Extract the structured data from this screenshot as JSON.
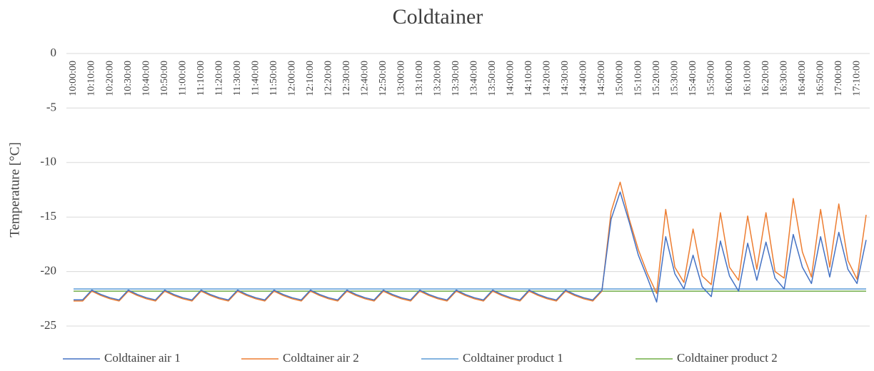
{
  "chart_data": {
    "type": "line",
    "title": "Coldtainer",
    "y_label": "Temperature [°C]",
    "categories": [
      "10:00:00",
      null,
      "10:10:00",
      null,
      "10:20:00",
      null,
      "10:30:00",
      null,
      "10:40:00",
      null,
      "10:50:00",
      null,
      "11:00:00",
      null,
      "11:10:00",
      null,
      "11:20:00",
      null,
      "11:30:00",
      null,
      "11:40:00",
      null,
      "11:50:00",
      null,
      "12:00:00",
      null,
      "12:10:00",
      null,
      "12:20:00",
      null,
      "12:30:00",
      null,
      "12:40:00",
      null,
      "12:50:00",
      null,
      "13:00:00",
      null,
      "13:10:00",
      null,
      "13:20:00",
      null,
      "13:30:00",
      null,
      "13:40:00",
      null,
      "13:50:00",
      null,
      "14:00:00",
      null,
      "14:10:00",
      null,
      "14:20:00",
      null,
      "14:30:00",
      null,
      "14:40:00",
      null,
      "14:50:00",
      null,
      "15:00:00",
      null,
      "15:10:00",
      null,
      "15:20:00",
      null,
      "15:30:00",
      null,
      "15:40:00",
      null,
      "15:50:00",
      null,
      "16:00:00",
      null,
      "16:10:00",
      null,
      "16:20:00",
      null,
      "16:30:00",
      null,
      "16:40:00",
      null,
      "16:50:00",
      null,
      "17:00:00",
      null,
      "17:10:00",
      null
    ],
    "series": [
      {
        "name": "Coldtainer air 1",
        "color": "#4472c4",
        "values": [
          -22.6,
          -22.6,
          -21.7,
          -22.1,
          -22.4,
          -22.6,
          -21.7,
          -22.1,
          -22.4,
          -22.6,
          -21.7,
          -22.1,
          -22.4,
          -22.6,
          -21.7,
          -22.1,
          -22.4,
          -22.6,
          -21.7,
          -22.1,
          -22.4,
          -22.6,
          -21.7,
          -22.1,
          -22.4,
          -22.6,
          -21.7,
          -22.1,
          -22.4,
          -22.6,
          -21.7,
          -22.1,
          -22.4,
          -22.6,
          -21.7,
          -22.1,
          -22.4,
          -22.6,
          -21.7,
          -22.1,
          -22.4,
          -22.6,
          -21.7,
          -22.1,
          -22.4,
          -22.6,
          -21.7,
          -22.1,
          -22.4,
          -22.6,
          -21.7,
          -22.1,
          -22.4,
          -22.6,
          -21.7,
          -22.1,
          -22.4,
          -22.6,
          -21.7,
          -15.2,
          -12.7,
          -15.5,
          -18.5,
          -20.6,
          -22.8,
          -16.8,
          -20.2,
          -21.6,
          -18.5,
          -21.4,
          -22.3,
          -17.2,
          -20.4,
          -21.8,
          -17.4,
          -20.8,
          -17.3,
          -20.6,
          -21.6,
          -16.6,
          -19.6,
          -21.1,
          -16.8,
          -20.5,
          -16.4,
          -19.8,
          -21.1,
          -17.1
        ]
      },
      {
        "name": "Coldtainer air 2",
        "color": "#ed7d31",
        "values": [
          -22.7,
          -22.7,
          -21.8,
          -22.2,
          -22.5,
          -22.7,
          -21.8,
          -22.2,
          -22.5,
          -22.7,
          -21.8,
          -22.2,
          -22.5,
          -22.7,
          -21.8,
          -22.2,
          -22.5,
          -22.7,
          -21.8,
          -22.2,
          -22.5,
          -22.7,
          -21.8,
          -22.2,
          -22.5,
          -22.7,
          -21.8,
          -22.2,
          -22.5,
          -22.7,
          -21.8,
          -22.2,
          -22.5,
          -22.7,
          -21.8,
          -22.2,
          -22.5,
          -22.7,
          -21.8,
          -22.2,
          -22.5,
          -22.7,
          -21.8,
          -22.2,
          -22.5,
          -22.7,
          -21.8,
          -22.2,
          -22.5,
          -22.7,
          -21.8,
          -22.2,
          -22.5,
          -22.7,
          -21.8,
          -22.2,
          -22.5,
          -22.7,
          -21.8,
          -14.5,
          -11.8,
          -15.2,
          -18.0,
          -20.2,
          -22.0,
          -14.3,
          -19.6,
          -21.0,
          -16.1,
          -20.4,
          -21.2,
          -14.6,
          -19.6,
          -20.8,
          -14.9,
          -19.8,
          -14.6,
          -20.0,
          -20.6,
          -13.3,
          -18.2,
          -20.5,
          -14.3,
          -19.6,
          -13.8,
          -19.0,
          -20.7,
          -14.8
        ]
      },
      {
        "name": "Coldtainer product 1",
        "color": "#5b9bd5",
        "values": [
          -21.6,
          -21.6,
          -21.6,
          -21.6,
          -21.6,
          -21.6,
          -21.6,
          -21.6,
          -21.6,
          -21.6,
          -21.6,
          -21.6,
          -21.6,
          -21.6,
          -21.6,
          -21.6,
          -21.6,
          -21.6,
          -21.6,
          -21.6,
          -21.6,
          -21.6,
          -21.6,
          -21.6,
          -21.6,
          -21.6,
          -21.6,
          -21.6,
          -21.6,
          -21.6,
          -21.6,
          -21.6,
          -21.6,
          -21.6,
          -21.6,
          -21.6,
          -21.6,
          -21.6,
          -21.6,
          -21.6,
          -21.6,
          -21.6,
          -21.6,
          -21.6,
          -21.6,
          -21.6,
          -21.6,
          -21.6,
          -21.6,
          -21.6,
          -21.6,
          -21.6,
          -21.6,
          -21.6,
          -21.6,
          -21.6,
          -21.6,
          -21.6,
          -21.6,
          -21.6,
          -21.6,
          -21.6,
          -21.6,
          -21.6,
          -21.6,
          -21.6,
          -21.6,
          -21.6,
          -21.6,
          -21.6,
          -21.6,
          -21.6,
          -21.6,
          -21.6,
          -21.6,
          -21.6,
          -21.6,
          -21.6,
          -21.6,
          -21.6,
          -21.6,
          -21.6,
          -21.6,
          -21.6,
          -21.6,
          -21.6,
          -21.6,
          -21.6
        ]
      },
      {
        "name": "Coldtainer product 2",
        "color": "#70ad47",
        "values": [
          -21.8,
          -21.8,
          -21.8,
          -21.8,
          -21.8,
          -21.8,
          -21.8,
          -21.8,
          -21.8,
          -21.8,
          -21.8,
          -21.8,
          -21.8,
          -21.8,
          -21.8,
          -21.8,
          -21.8,
          -21.8,
          -21.8,
          -21.8,
          -21.8,
          -21.8,
          -21.8,
          -21.8,
          -21.8,
          -21.8,
          -21.8,
          -21.8,
          -21.8,
          -21.8,
          -21.8,
          -21.8,
          -21.8,
          -21.8,
          -21.8,
          -21.8,
          -21.8,
          -21.8,
          -21.8,
          -21.8,
          -21.8,
          -21.8,
          -21.8,
          -21.8,
          -21.8,
          -21.8,
          -21.8,
          -21.8,
          -21.8,
          -21.8,
          -21.8,
          -21.8,
          -21.8,
          -21.8,
          -21.8,
          -21.8,
          -21.8,
          -21.8,
          -21.8,
          -21.8,
          -21.8,
          -21.8,
          -21.8,
          -21.8,
          -21.8,
          -21.8,
          -21.8,
          -21.8,
          -21.8,
          -21.8,
          -21.8,
          -21.8,
          -21.8,
          -21.8,
          -21.8,
          -21.8,
          -21.8,
          -21.8,
          -21.8,
          -21.8,
          -21.8,
          -21.8,
          -21.8,
          -21.8,
          -21.8,
          -21.8,
          -21.8,
          -21.8
        ]
      }
    ],
    "ylim": [
      -25,
      0
    ],
    "yticks": [
      -25,
      -20,
      -15,
      -10,
      -5,
      0
    ],
    "grid": true,
    "legend": "bottom"
  }
}
